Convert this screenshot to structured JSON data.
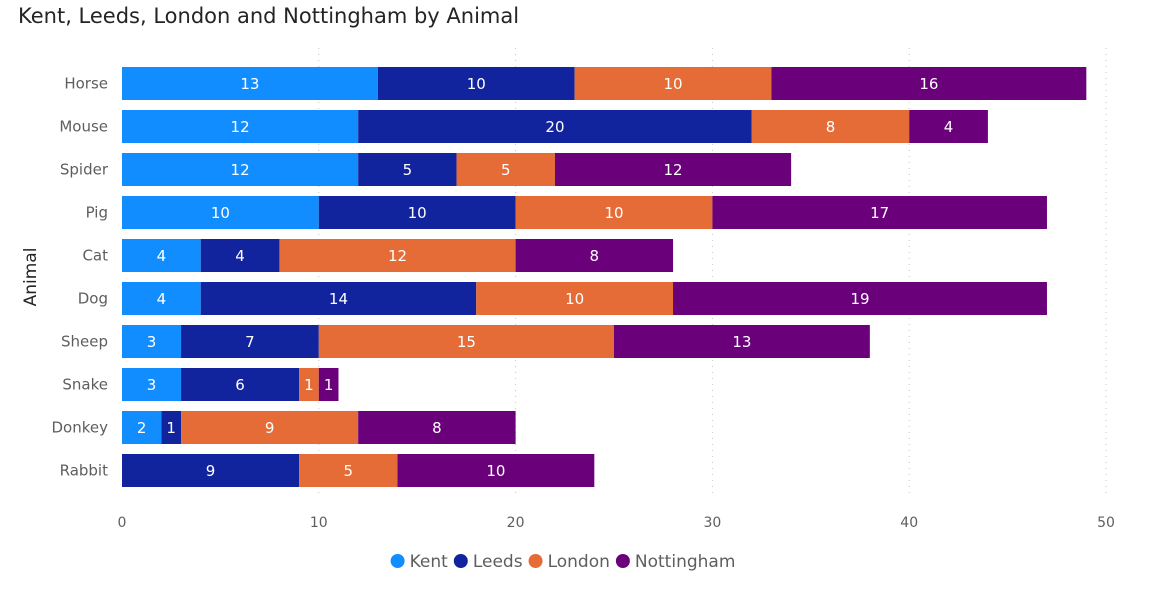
{
  "chart_data": {
    "type": "bar",
    "orientation": "horizontal",
    "stacked": true,
    "title": "Kent, Leeds, London and Nottingham by Animal",
    "ylabel": "Animal",
    "xlabel": "",
    "xlim": [
      0,
      50
    ],
    "x_ticks": [
      "0",
      "10",
      "20",
      "30",
      "40",
      "50"
    ],
    "grid": true,
    "legend_position": "bottom",
    "categories": [
      "Horse",
      "Mouse",
      "Spider",
      "Pig",
      "Cat",
      "Dog",
      "Sheep",
      "Snake",
      "Donkey",
      "Rabbit"
    ],
    "series": [
      {
        "name": "Kent",
        "color": "#118dff",
        "values": [
          13,
          12,
          12,
          10,
          4,
          4,
          3,
          3,
          2,
          0
        ]
      },
      {
        "name": "Leeds",
        "color": "#12239e",
        "values": [
          10,
          20,
          5,
          10,
          4,
          14,
          7,
          6,
          1,
          9
        ]
      },
      {
        "name": "London",
        "color": "#e66c37",
        "values": [
          10,
          8,
          5,
          10,
          12,
          10,
          15,
          1,
          9,
          5
        ]
      },
      {
        "name": "Nottingham",
        "color": "#6b007b",
        "values": [
          16,
          4,
          12,
          17,
          8,
          19,
          13,
          1,
          8,
          10
        ]
      }
    ]
  }
}
